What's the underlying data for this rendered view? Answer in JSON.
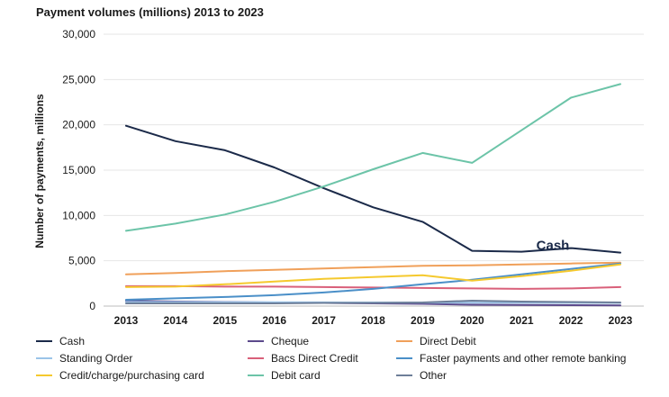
{
  "chart_data": {
    "type": "line",
    "title": "Payment volumes (millions) 2013 to 2023",
    "xlabel": "",
    "ylabel": "Number of payments, millions",
    "x": [
      2013,
      2014,
      2015,
      2016,
      2017,
      2018,
      2019,
      2020,
      2021,
      2022,
      2023
    ],
    "x_tick_labels": [
      "2013",
      "2014",
      "2015",
      "2016",
      "2017",
      "2018",
      "2019",
      "2020",
      "2021",
      "2022",
      "2023"
    ],
    "ylim": [
      0,
      30000
    ],
    "y_tick_labels": [
      "0",
      "5,000",
      "10,000",
      "15,000",
      "20,000",
      "25,000",
      "30,000"
    ],
    "y_ticks": [
      0,
      5000,
      10000,
      15000,
      20000,
      25000,
      30000
    ],
    "grid": "horizontal",
    "legend_position": "bottom",
    "series": [
      {
        "name": "Cash",
        "color": "#1b2a49",
        "values": [
          19900,
          18200,
          17200,
          15300,
          13000,
          10900,
          9300,
          6100,
          6000,
          6400,
          5900
        ]
      },
      {
        "name": "Cheque",
        "color": "#5c4a8c",
        "values": [
          600,
          500,
          450,
          400,
          350,
          300,
          250,
          150,
          120,
          100,
          80
        ]
      },
      {
        "name": "Direct Debit",
        "color": "#f0a05a",
        "values": [
          3500,
          3650,
          3850,
          4000,
          4150,
          4300,
          4450,
          4500,
          4600,
          4700,
          4800
        ]
      },
      {
        "name": "Standing Order",
        "color": "#9bc4e8",
        "values": [
          450,
          440,
          430,
          420,
          410,
          400,
          390,
          380,
          370,
          360,
          350
        ]
      },
      {
        "name": "Bacs Direct Credit",
        "color": "#d9607a",
        "values": [
          2200,
          2200,
          2150,
          2150,
          2100,
          2050,
          2000,
          1950,
          1900,
          1950,
          2100
        ]
      },
      {
        "name": "Faster payments and other remote banking",
        "color": "#4a8fc8",
        "values": [
          700,
          850,
          1000,
          1200,
          1500,
          1900,
          2400,
          2900,
          3500,
          4100,
          4700
        ]
      },
      {
        "name": "Credit/charge/purchasing card",
        "color": "#f5c92e",
        "values": [
          2100,
          2150,
          2400,
          2700,
          3000,
          3200,
          3400,
          2800,
          3300,
          3900,
          4600
        ]
      },
      {
        "name": "Debit card",
        "color": "#6cc4a8",
        "values": [
          8300,
          9100,
          10100,
          11500,
          13200,
          15100,
          16900,
          15800,
          19400,
          23000,
          24500
        ]
      },
      {
        "name": "Other",
        "color": "#6e7f99",
        "values": [
          300,
          300,
          300,
          300,
          350,
          350,
          400,
          600,
          500,
          450,
          400
        ]
      }
    ],
    "annotations": [
      {
        "text": "Cash",
        "color": "#1b2a49",
        "x": 2021.3,
        "y": 6400
      }
    ]
  }
}
